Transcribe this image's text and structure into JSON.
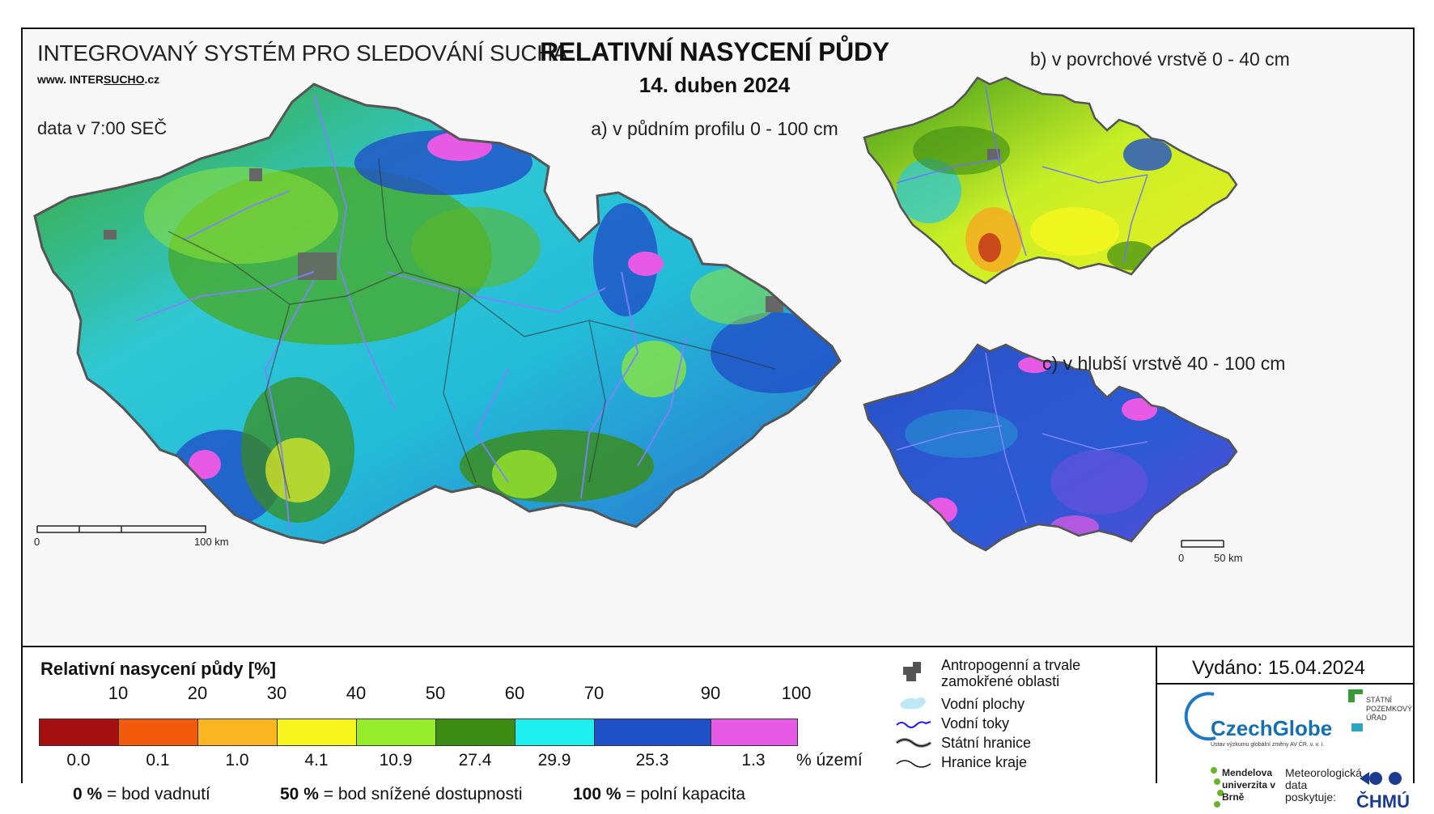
{
  "header": {
    "system_title": "INTEGROVANÝ SYSTÉM PRO SLEDOVÁNÍ SUCHA",
    "website_prefix": "www. INTER",
    "website_underlined": "SUCHO",
    "website_suffix": ".cz",
    "data_time": "data v 7:00 SEČ",
    "main_title": "RELATIVNÍ NASYCENÍ PŮDY",
    "date": "14. duben 2024"
  },
  "panels": {
    "a": "a) v půdním profilu 0 - 100 cm",
    "b": "b) v povrchové vrstvě 0 - 40 cm",
    "c": "c) v hlubší vrstvě 40 - 100 cm"
  },
  "scale_bars": {
    "main": {
      "start": "0",
      "end": "100 km"
    },
    "small": {
      "start": "0",
      "end": "50 km"
    }
  },
  "legend": {
    "title": "Relativní nasycení půdy [%]",
    "breaks": [
      "10",
      "20",
      "30",
      "40",
      "50",
      "60",
      "70",
      "90",
      "100"
    ],
    "classes": [
      {
        "color": "#a50f0f",
        "percent_area": "0.0"
      },
      {
        "color": "#f25a0c",
        "percent_area": "0.1"
      },
      {
        "color": "#fbb520",
        "percent_area": "1.0"
      },
      {
        "color": "#f6f61e",
        "percent_area": "4.1"
      },
      {
        "color": "#96ee2a",
        "percent_area": "10.9"
      },
      {
        "color": "#3c8c14",
        "percent_area": "27.4"
      },
      {
        "color": "#1ef0f0",
        "percent_area": "29.9"
      },
      {
        "color": "#1e50c8",
        "percent_area": "25.3"
      },
      {
        "color": "#e65ae6",
        "percent_area": "1.3"
      }
    ],
    "unit": "% území",
    "definitions": [
      {
        "value": "0 %",
        "text": "= bod vadnutí"
      },
      {
        "value": "50 %",
        "text": "= bod snížené dostupnosti"
      },
      {
        "value": "100 %",
        "text": "= polní kapacita"
      }
    ]
  },
  "symbols": {
    "items": [
      {
        "icon": "urban-area-icon",
        "label": "Antropogenní a trvale zamokřené oblasti"
      },
      {
        "icon": "water-body-icon",
        "label": "Vodní plochy"
      },
      {
        "icon": "river-icon",
        "label": "Vodní toky"
      },
      {
        "icon": "state-border-icon",
        "label": "Státní hranice"
      },
      {
        "icon": "region-border-icon",
        "label": "Hranice kraje"
      }
    ]
  },
  "footer": {
    "issued": "Vydáno: 15.04.2024",
    "czechglobe": "CzechGlobe",
    "czechglobe_sub": "Ústav výzkumu globální změny AV ČR, v. v. i.",
    "spu": "STÁTNÍ POZEMKOVÝ ÚŘAD",
    "mendel": "Mendelova univerzita v Brně",
    "meteo": "Meteorologická data poskytuje:",
    "chmu": "ČHMÚ"
  },
  "colors": {
    "border_gray": "#555555",
    "river": "#7070ff"
  }
}
